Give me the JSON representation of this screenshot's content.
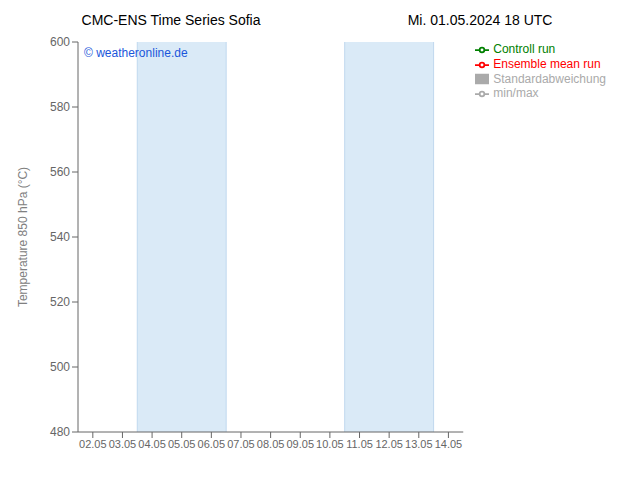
{
  "chart_data": {
    "type": "line",
    "title": "CMC-ENS Time Series Sofia",
    "subtitle": "Mi. 01.05.2024 18 UTC",
    "ylabel": "Temperature 850 hPa (°C)",
    "annotations": [
      "© weatheronline.de"
    ],
    "categories": [
      "02.05",
      "03.05",
      "04.05",
      "05.05",
      "06.05",
      "07.05",
      "08.05",
      "09.05",
      "10.05",
      "11.05",
      "12.05",
      "13.05",
      "14.05"
    ],
    "series": [
      {
        "name": "min/max",
        "type": "line",
        "color": "#aaaaaa",
        "values": [
          null,
          null,
          null,
          null,
          null,
          null,
          null,
          null,
          null,
          null,
          null,
          null,
          null
        ]
      },
      {
        "name": "Standardabweichung",
        "type": "area",
        "color": "#dddddd",
        "values": [
          null,
          null,
          null,
          null,
          null,
          null,
          null,
          null,
          null,
          null,
          null,
          null,
          null
        ]
      },
      {
        "name": "Ensemble mean run",
        "type": "line",
        "color": "#ff0000",
        "values": [
          null,
          null,
          null,
          null,
          null,
          null,
          null,
          null,
          null,
          null,
          null,
          null,
          null
        ]
      },
      {
        "name": "Controll run",
        "type": "line",
        "color": "#008000",
        "values": [
          null,
          null,
          null,
          null,
          null,
          null,
          null,
          null,
          null,
          null,
          null,
          null,
          null
        ]
      }
    ],
    "bands": [
      {
        "from": "04.05",
        "to": "06.05",
        "color": "#daeaf7"
      },
      {
        "from": "11.05",
        "to": "13.05",
        "color": "#daeaf7"
      }
    ],
    "ylim": [
      480,
      600
    ],
    "yticks": [
      480,
      500,
      520,
      540,
      560,
      580,
      600
    ],
    "grid": false,
    "legend": "upper right"
  }
}
